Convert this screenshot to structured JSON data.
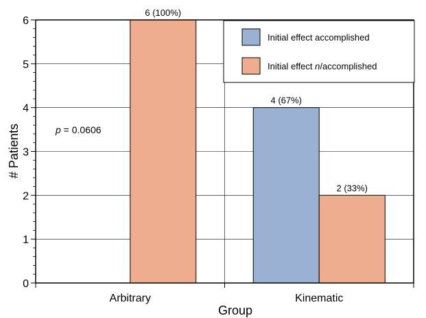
{
  "chart_data": {
    "type": "bar",
    "title": "",
    "xlabel": "Group",
    "ylabel": "# Patients",
    "ylim": [
      0,
      6
    ],
    "yticks": [
      "0",
      "1",
      "2",
      "3",
      "4",
      "5",
      "6"
    ],
    "categories": [
      "Arbitrary",
      "Kinematic"
    ],
    "series": [
      {
        "name": "Initial effect accomplished",
        "color": "#9bb1d3",
        "values": [
          0,
          4
        ],
        "labels": [
          "",
          "4 (67%)"
        ]
      },
      {
        "name_prefix": "Initial effect ",
        "name_italic": "n",
        "name_suffix": "/accomplished",
        "color": "#efad8f",
        "values": [
          6,
          2
        ],
        "labels": [
          "6 (100%)",
          "2 (33%)"
        ]
      }
    ],
    "grid": true,
    "legend_position": "top-right",
    "annotation": {
      "var": "p",
      "text": " = 0.0606"
    }
  }
}
